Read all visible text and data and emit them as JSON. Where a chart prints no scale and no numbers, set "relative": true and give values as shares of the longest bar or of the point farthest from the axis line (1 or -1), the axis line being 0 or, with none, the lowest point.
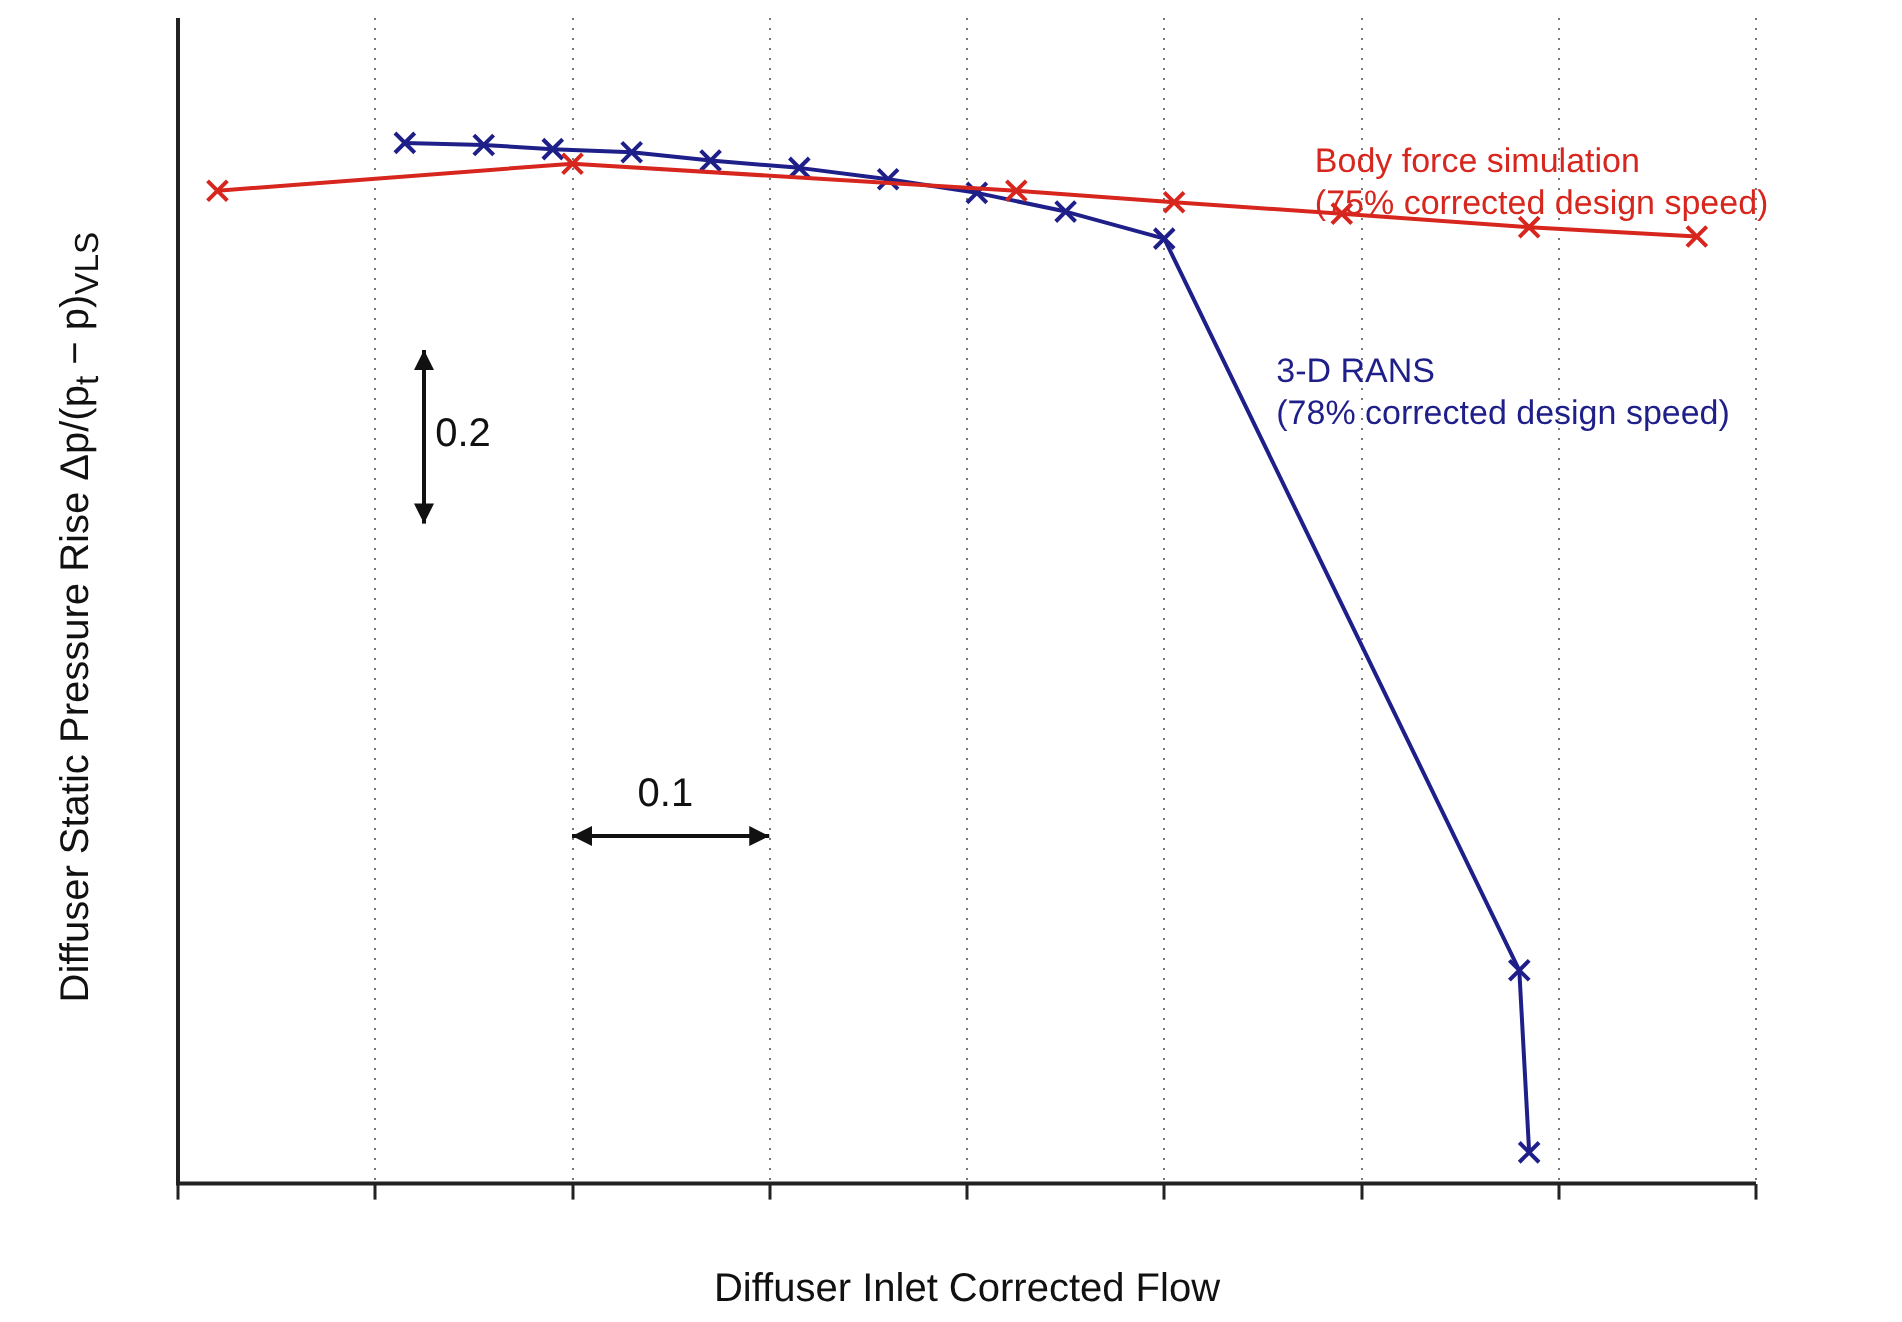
{
  "chart_data": {
    "type": "line",
    "xlabel": "Diffuser Inlet Corrected Flow",
    "ylabel": "Diffuser Static Pressure Rise  Δp/(p$_{t}$ − p)$_{VLS}$",
    "relative": true,
    "categories": [
      null,
      null,
      null,
      null,
      null,
      null,
      null,
      null,
      null,
      null,
      null,
      null,
      null,
      null,
      null,
      null,
      null,
      null,
      null,
      null,
      null,
      null,
      null,
      null,
      null,
      null,
      null,
      null,
      null,
      null,
      null,
      null,
      null,
      null,
      null,
      null,
      null,
      null,
      null,
      null,
      null,
      null,
      null,
      null,
      null,
      null,
      null,
      null,
      null,
      null,
      null,
      null,
      null,
      null,
      null,
      null,
      null,
      null,
      null,
      null,
      null,
      null,
      null,
      null,
      null,
      null,
      null,
      null,
      null,
      null,
      null,
      null,
      null,
      null,
      null,
      null,
      null,
      null,
      null,
      null,
      null,
      null,
      null,
      null,
      null,
      null,
      null,
      null,
      null,
      null,
      null,
      null,
      null,
      null,
      null,
      null,
      null,
      null,
      null,
      null,
      null,
      null,
      null,
      null,
      null,
      null,
      null,
      null,
      null,
      null,
      null,
      null,
      null,
      null,
      null,
      null,
      null,
      null,
      null,
      null,
      null,
      null,
      null,
      null,
      null,
      null,
      null,
      null,
      null,
      null,
      null,
      null,
      null,
      null,
      null,
      null,
      null,
      null,
      null,
      null,
      null,
      null,
      null,
      null,
      null,
      null,
      null,
      null,
      null,
      null,
      null,
      null,
      null,
      null,
      null,
      null,
      null,
      null,
      null,
      null,
      null
    ],
    "grid": "x",
    "marker": "cross",
    "line_style": "solid",
    "legend": false,
    "annotations": [
      "0.2",
      "0.1"
    ],
    "series": [
      {
        "name": "Body force simulation (75% corrected design speed)",
        "color": "#d7261e",
        "values": [
          null,
          null,
          null,
          null,
          0.954,
          null,
          null,
          null,
          null,
          null,
          null,
          null,
          null,
          null,
          null,
          null,
          null,
          null,
          null,
          null,
          null,
          null,
          null,
          null,
          null,
          null,
          null,
          null,
          null,
          null,
          null,
          null,
          null,
          null,
          null,
          null,
          null,
          null,
          null,
          null,
          0.98,
          null,
          null,
          null,
          null,
          null,
          null,
          null,
          null,
          null,
          null,
          null,
          null,
          null,
          null,
          null,
          null,
          null,
          null,
          null,
          null,
          null,
          null,
          null,
          null,
          null,
          null,
          null,
          null,
          null,
          null,
          null,
          null,
          null,
          null,
          null,
          null,
          null,
          null,
          null,
          null,
          null,
          null,
          null,
          null,
          0.954,
          null,
          null,
          null,
          null,
          null,
          null,
          null,
          null,
          null,
          null,
          null,
          null,
          null,
          null,
          null,
          0.943,
          null,
          null,
          null,
          null,
          null,
          null,
          null,
          null,
          null,
          null,
          null,
          null,
          null,
          null,
          null,
          null,
          0.932,
          null,
          null,
          null,
          null,
          null,
          null,
          null,
          null,
          null,
          null,
          null,
          null,
          null,
          null,
          null,
          null,
          null,
          null,
          0.919,
          null,
          null,
          null,
          null,
          null,
          null,
          null,
          null,
          null,
          null,
          null,
          null,
          null,
          null,
          null,
          null,
          0.91,
          null,
          null,
          null,
          null,
          null,
          null
        ]
      },
      {
        "name": "3-D RANS (78% corrected design speed)",
        "color": "#1f1f8a",
        "values": [
          null,
          null,
          null,
          null,
          null,
          null,
          null,
          null,
          null,
          null,
          null,
          null,
          null,
          null,
          null,
          null,
          null,
          null,
          null,
          null,
          null,
          null,
          null,
          1,
          null,
          null,
          null,
          null,
          null,
          null,
          null,
          0.998,
          null,
          null,
          null,
          null,
          null,
          null,
          0.994,
          null,
          null,
          null,
          null,
          null,
          null,
          null,
          0.991,
          null,
          null,
          null,
          null,
          null,
          null,
          null,
          0.983,
          null,
          null,
          null,
          null,
          null,
          null,
          null,
          null,
          0.976,
          null,
          null,
          null,
          null,
          null,
          null,
          null,
          null,
          0.965,
          null,
          null,
          null,
          null,
          null,
          null,
          null,
          null,
          0.952,
          null,
          null,
          null,
          null,
          null,
          null,
          null,
          null,
          0.934,
          null,
          null,
          null,
          null,
          null,
          null,
          null,
          null,
          null,
          0.908,
          null,
          null,
          null,
          null,
          null,
          null,
          null,
          null,
          null,
          null,
          null,
          null,
          null,
          null,
          null,
          null,
          null,
          null,
          null,
          null,
          null,
          null,
          null,
          null,
          null,
          null,
          null,
          null,
          null,
          null,
          null,
          null,
          null,
          null,
          null,
          0.205,
          0.03,
          null,
          null,
          null,
          null,
          null,
          null,
          null,
          null,
          null,
          null,
          null,
          null,
          null,
          null,
          null,
          null,
          null,
          null,
          null,
          null,
          null,
          null,
          null
        ]
      }
    ]
  }
}
